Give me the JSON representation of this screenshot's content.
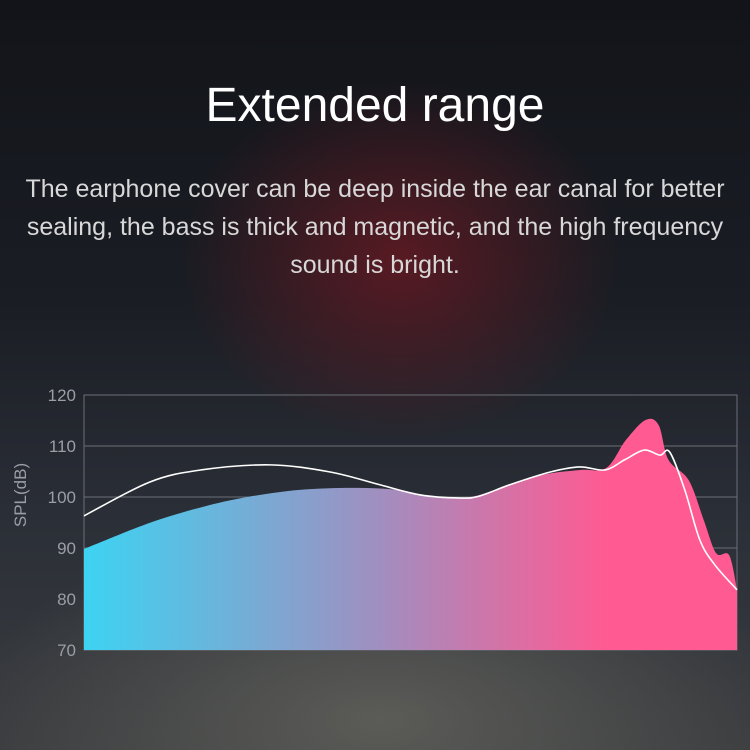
{
  "title": "Extended range",
  "description": "The earphone cover can be deep inside the ear canal for better sealing, the bass is thick and magnetic, and the high frequency sound is bright.",
  "chart_data": {
    "type": "area",
    "title": "",
    "xlabel": "",
    "ylabel": "SPL(dB)",
    "ylim": [
      70,
      120
    ],
    "yticks": [
      "70",
      "80",
      "90",
      "100",
      "110",
      "120"
    ],
    "grid": true,
    "colors": {
      "fill_start": "#3dd3f2",
      "fill_mid": "#a08fc0",
      "fill_end": "#ff5a92",
      "line": "#ffffff"
    },
    "series": [
      {
        "kind": "filled-area",
        "x": [
          0,
          10,
          18,
          25,
          33,
          41,
          48,
          54,
          59,
          63,
          70,
          76,
          80,
          83,
          86,
          88,
          89.5,
          92.6,
          94.9,
          96.8,
          98.8,
          100
        ],
        "values": [
          89.8,
          94.9,
          98,
          100,
          101.4,
          101.8,
          101.4,
          100,
          100,
          101.4,
          104.3,
          105.3,
          105.7,
          111.2,
          115.1,
          114.1,
          107.3,
          103.3,
          95.5,
          89,
          88.6,
          81.8
        ]
      },
      {
        "kind": "line",
        "x": [
          0,
          10,
          17.9,
          28.5,
          37.7,
          45.3,
          51.5,
          57.6,
          60.6,
          65.2,
          71.4,
          75.9,
          79.8,
          82.8,
          85.8,
          88.2,
          89.7,
          92,
          94.3,
          96.6,
          100
        ],
        "values": [
          96.3,
          102.9,
          105.3,
          106.3,
          104.9,
          102.4,
          100.4,
          99.8,
          100.2,
          102.4,
          104.9,
          105.9,
          105.3,
          107.3,
          109.2,
          108.2,
          108.8,
          101.4,
          91.6,
          86.7,
          81.8
        ]
      }
    ]
  }
}
